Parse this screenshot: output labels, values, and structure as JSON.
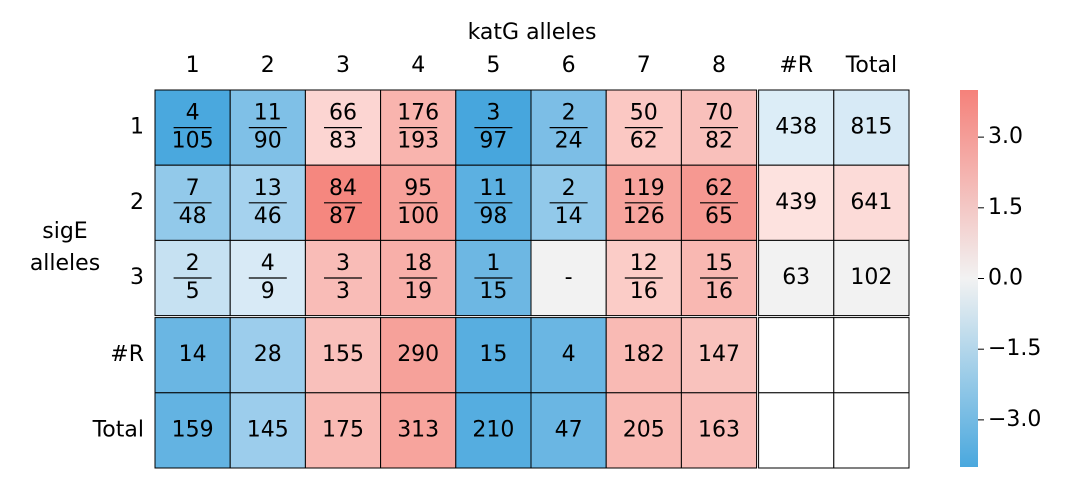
{
  "chart_data": {
    "type": "heatmap",
    "title": "katG alleles",
    "ylabel": [
      "sigE",
      "alleles"
    ],
    "columns": [
      "1",
      "2",
      "3",
      "4",
      "5",
      "6",
      "7",
      "8",
      "#R",
      "Total"
    ],
    "rows": [
      "1",
      "2",
      "3",
      "#R",
      "Total"
    ],
    "cells": [
      [
        {
          "num": 4,
          "den": 105,
          "color": "#4aa8de"
        },
        {
          "num": 11,
          "den": 90,
          "color": "#7fc0e7"
        },
        {
          "num": 66,
          "den": 83,
          "color": "#fcd5d2"
        },
        {
          "num": 176,
          "den": 193,
          "color": "#f9b4ae"
        },
        {
          "num": 3,
          "den": 97,
          "color": "#47a6dd"
        },
        {
          "num": 2,
          "den": 24,
          "color": "#7cbee6"
        },
        {
          "num": 50,
          "den": 62,
          "color": "#fbc8c3"
        },
        {
          "num": 70,
          "den": 82,
          "color": "#f9c0bb"
        },
        {
          "value": 438,
          "color": "#dcedf7"
        },
        {
          "value": 815,
          "color": "#d7eaf6"
        }
      ],
      [
        {
          "num": 7,
          "den": 48,
          "color": "#92c9ea"
        },
        {
          "num": 13,
          "den": 46,
          "color": "#a5d2ee"
        },
        {
          "num": 84,
          "den": 87,
          "color": "#f5877f"
        },
        {
          "num": 95,
          "den": 100,
          "color": "#f7a19a"
        },
        {
          "num": 11,
          "den": 98,
          "color": "#5cb0e1"
        },
        {
          "num": 2,
          "den": 14,
          "color": "#92c9ea"
        },
        {
          "num": 119,
          "den": 126,
          "color": "#f7a49d"
        },
        {
          "num": 62,
          "den": 65,
          "color": "#f69891"
        },
        {
          "value": 439,
          "color": "#fde2df"
        },
        {
          "value": 641,
          "color": "#fcdbd8"
        }
      ],
      [
        {
          "num": 2,
          "den": 5,
          "color": "#c6e1f2"
        },
        {
          "num": 4,
          "den": 9,
          "color": "#d8eaf6"
        },
        {
          "num": 3,
          "den": 3,
          "color": "#f9bcb7"
        },
        {
          "num": 18,
          "den": 19,
          "color": "#f8afa9"
        },
        {
          "num": 1,
          "den": 15,
          "color": "#6db7e3"
        },
        {
          "label": "-",
          "color": "#f2f2f2"
        },
        {
          "num": 12,
          "den": 16,
          "color": "#fbccc7"
        },
        {
          "num": 15,
          "den": 16,
          "color": "#f9b8b2"
        },
        {
          "value": 63,
          "color": "#f2f2f2"
        },
        {
          "value": 102,
          "color": "#f2f2f2"
        }
      ],
      [
        {
          "value": 14,
          "color": "#6ab6e3"
        },
        {
          "value": 28,
          "color": "#9ccdec"
        },
        {
          "value": 155,
          "color": "#f9c0bb"
        },
        {
          "value": 290,
          "color": "#f6a19a"
        },
        {
          "value": 15,
          "color": "#58aee0"
        },
        {
          "value": 4,
          "color": "#6ab6e3"
        },
        {
          "value": 182,
          "color": "#f9bab4"
        },
        {
          "value": 147,
          "color": "#f9c2bd"
        },
        null,
        null
      ],
      [
        {
          "value": 159,
          "color": "#63b3e2"
        },
        {
          "value": 145,
          "color": "#9ccdec"
        },
        {
          "value": 175,
          "color": "#f9bab4"
        },
        {
          "value": 313,
          "color": "#f7a49d"
        },
        {
          "value": 210,
          "color": "#55ade0"
        },
        {
          "value": 47,
          "color": "#6ab6e3"
        },
        {
          "value": 205,
          "color": "#f9bab4"
        },
        {
          "value": 163,
          "color": "#f9bdb8"
        },
        null,
        null
      ]
    ],
    "colormap": [
      "#4aa8de",
      "#f2f2f2",
      "#f5817a"
    ],
    "clim": [
      -4,
      4
    ],
    "cticks": [
      {
        "value": 3,
        "label": "3.0"
      },
      {
        "value": 1.5,
        "label": "1.5"
      },
      {
        "value": 0,
        "label": "0.0"
      },
      {
        "value": -1.5,
        "label": "−1.5"
      },
      {
        "value": -3,
        "label": "−3.0"
      }
    ]
  }
}
